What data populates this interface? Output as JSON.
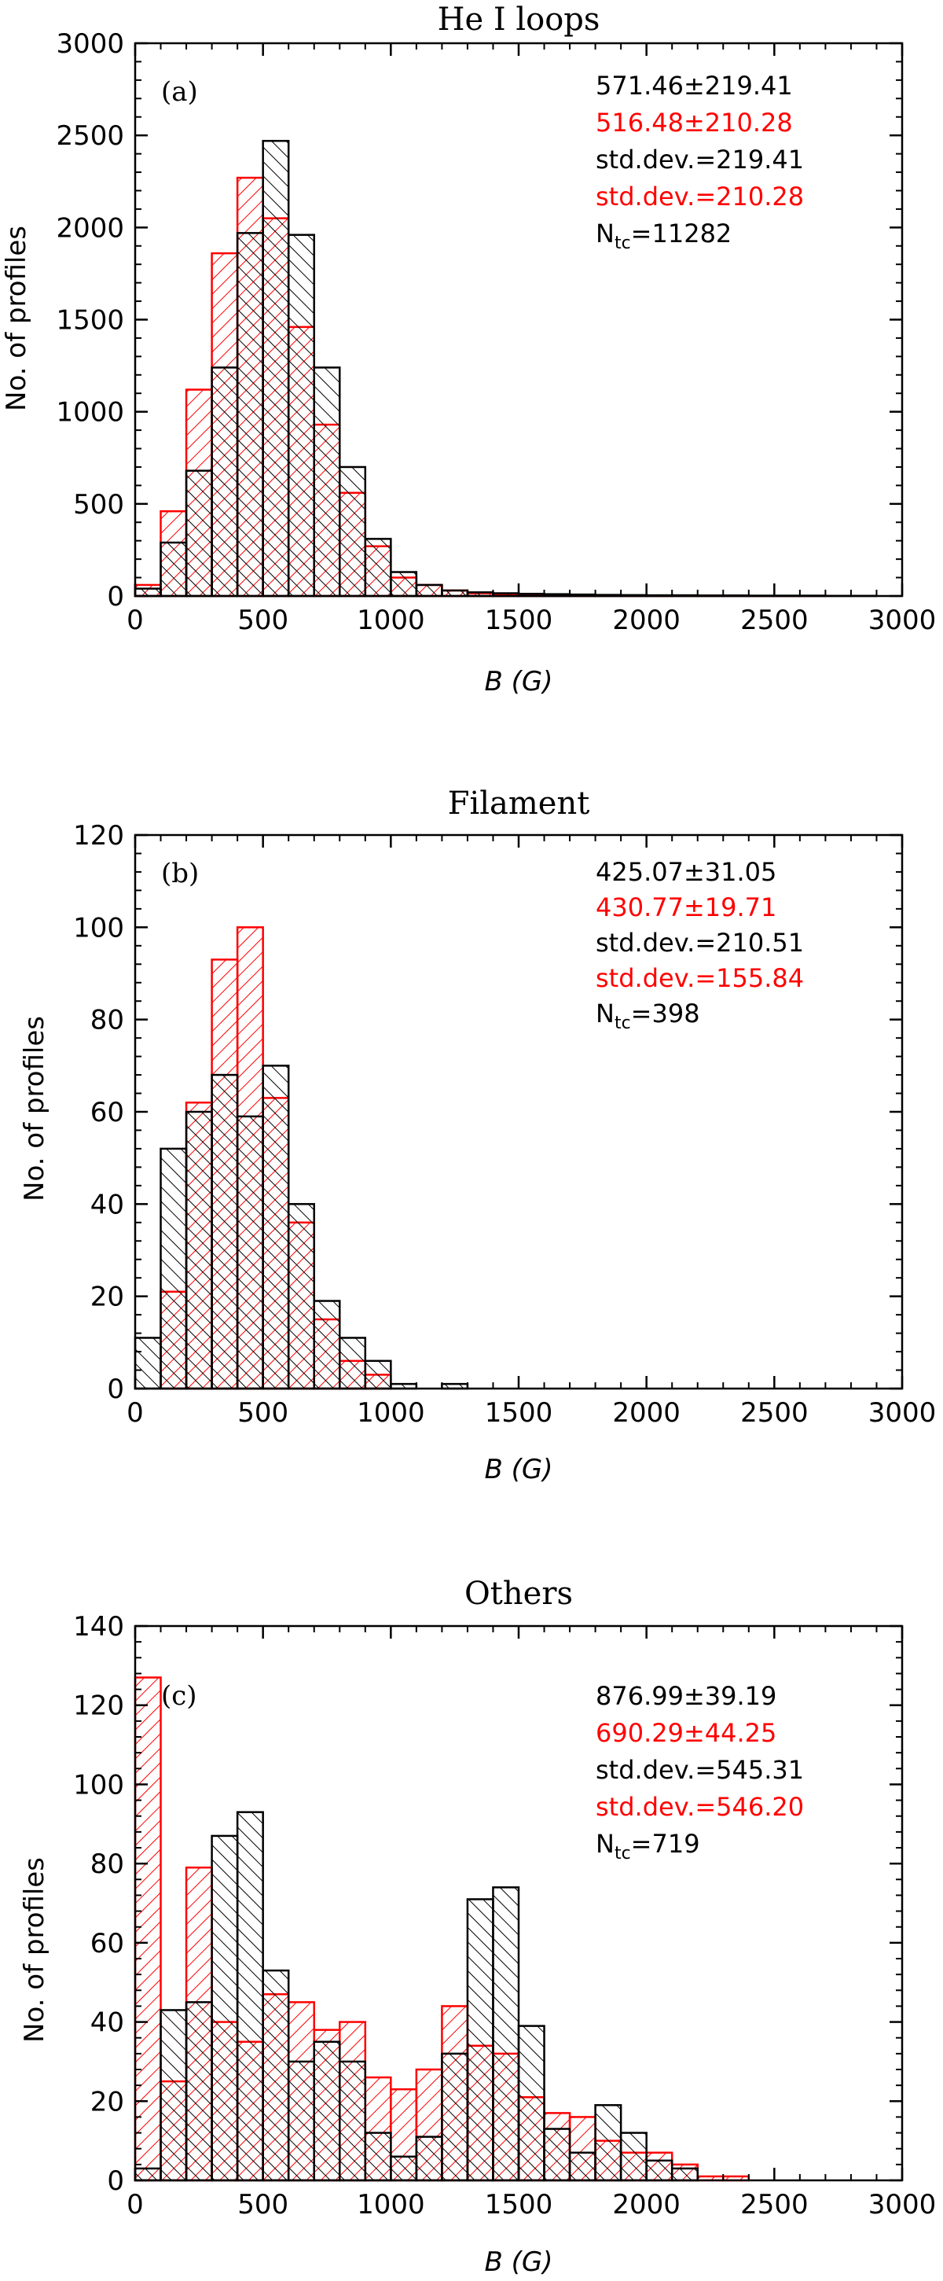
{
  "chart_data": [
    {
      "type": "bar",
      "title": "He I loops",
      "panel_label": "(a)",
      "xlabel": "B (G)",
      "ylabel": "No. of profiles",
      "xlim": [
        0,
        3000
      ],
      "ylim": [
        0,
        3000
      ],
      "xticks": [
        0,
        500,
        1000,
        1500,
        2000,
        2500,
        3000
      ],
      "yticks": [
        0,
        500,
        1000,
        1500,
        2000,
        2500,
        3000
      ],
      "bin_width": 100,
      "series": [
        {
          "name": "black",
          "color": "#000000",
          "hatch": "backslash",
          "values": [
            40,
            290,
            680,
            1240,
            1970,
            2470,
            1960,
            1240,
            700,
            310,
            130,
            60,
            30,
            20,
            15,
            12,
            10,
            8,
            6,
            5,
            4,
            4,
            3,
            3,
            2,
            2,
            2,
            1,
            1
          ]
        },
        {
          "name": "red",
          "color": "#ff0000",
          "hatch": "slash",
          "values": [
            60,
            460,
            1120,
            1860,
            2270,
            2050,
            1460,
            930,
            560,
            270,
            100,
            60,
            30,
            15,
            10,
            8,
            6,
            5,
            4,
            3,
            2,
            2,
            2,
            1,
            1,
            1,
            1,
            0,
            0
          ]
        }
      ],
      "stats": [
        {
          "text": "571.46±219.41",
          "color": "#000000"
        },
        {
          "text": "516.48±210.28",
          "color": "#ff0000"
        },
        {
          "text": "std.dev.=219.41",
          "color": "#000000"
        },
        {
          "text": "std.dev.=210.28",
          "color": "#ff0000"
        }
      ],
      "ntc_label": "N",
      "ntc_sub": "tc",
      "ntc_value": "=11282"
    },
    {
      "type": "bar",
      "title": "Filament",
      "panel_label": "(b)",
      "xlabel": "B (G)",
      "ylabel": "No. of profiles",
      "xlim": [
        0,
        3000
      ],
      "ylim": [
        0,
        120
      ],
      "xticks": [
        0,
        500,
        1000,
        1500,
        2000,
        2500,
        3000
      ],
      "yticks": [
        0,
        20,
        40,
        60,
        80,
        100,
        120
      ],
      "bin_width": 100,
      "series": [
        {
          "name": "black",
          "color": "#000000",
          "hatch": "backslash",
          "values": [
            11,
            52,
            60,
            68,
            59,
            70,
            40,
            19,
            11,
            6,
            1,
            0,
            1,
            0,
            0,
            0,
            0,
            0,
            0,
            0,
            0,
            0,
            0,
            0,
            0,
            0,
            0,
            0,
            0,
            0
          ]
        },
        {
          "name": "red",
          "color": "#ff0000",
          "hatch": "slash",
          "values": [
            0,
            21,
            62,
            93,
            100,
            63,
            36,
            15,
            6,
            3,
            0,
            0,
            0,
            0,
            0,
            0,
            0,
            0,
            0,
            0,
            0,
            0,
            0,
            0,
            0,
            0,
            0,
            0,
            0,
            0
          ]
        }
      ],
      "stats": [
        {
          "text": "425.07±31.05",
          "color": "#000000"
        },
        {
          "text": "430.77±19.71",
          "color": "#ff0000"
        },
        {
          "text": "std.dev.=210.51",
          "color": "#000000"
        },
        {
          "text": "std.dev.=155.84",
          "color": "#ff0000"
        }
      ],
      "ntc_label": "N",
      "ntc_sub": "tc",
      "ntc_value": "=398"
    },
    {
      "type": "bar",
      "title": "Others",
      "panel_label": "(c)",
      "xlabel": "B (G)",
      "ylabel": "No. of profiles",
      "xlim": [
        0,
        3000
      ],
      "ylim": [
        0,
        140
      ],
      "xticks": [
        0,
        500,
        1000,
        1500,
        2000,
        2500,
        3000
      ],
      "yticks": [
        0,
        20,
        40,
        60,
        80,
        100,
        120,
        140
      ],
      "bin_width": 100,
      "series": [
        {
          "name": "black",
          "color": "#000000",
          "hatch": "backslash",
          "values": [
            3,
            43,
            45,
            87,
            93,
            53,
            30,
            35,
            30,
            12,
            6,
            11,
            32,
            71,
            74,
            39,
            13,
            7,
            19,
            12,
            5,
            3,
            0,
            0,
            0,
            0,
            0,
            0,
            0,
            0
          ]
        },
        {
          "name": "red",
          "color": "#ff0000",
          "hatch": "slash",
          "values": [
            127,
            25,
            79,
            40,
            35,
            47,
            45,
            38,
            40,
            26,
            23,
            28,
            44,
            34,
            32,
            21,
            17,
            16,
            10,
            7,
            7,
            4,
            1,
            1,
            0,
            0,
            0,
            0,
            0,
            0
          ]
        }
      ],
      "stats": [
        {
          "text": "876.99±39.19",
          "color": "#000000"
        },
        {
          "text": "690.29±44.25",
          "color": "#ff0000"
        },
        {
          "text": "std.dev.=545.31",
          "color": "#000000"
        },
        {
          "text": "std.dev.=546.20",
          "color": "#ff0000"
        }
      ],
      "ntc_label": "N",
      "ntc_sub": "tc",
      "ntc_value": "=719"
    }
  ]
}
